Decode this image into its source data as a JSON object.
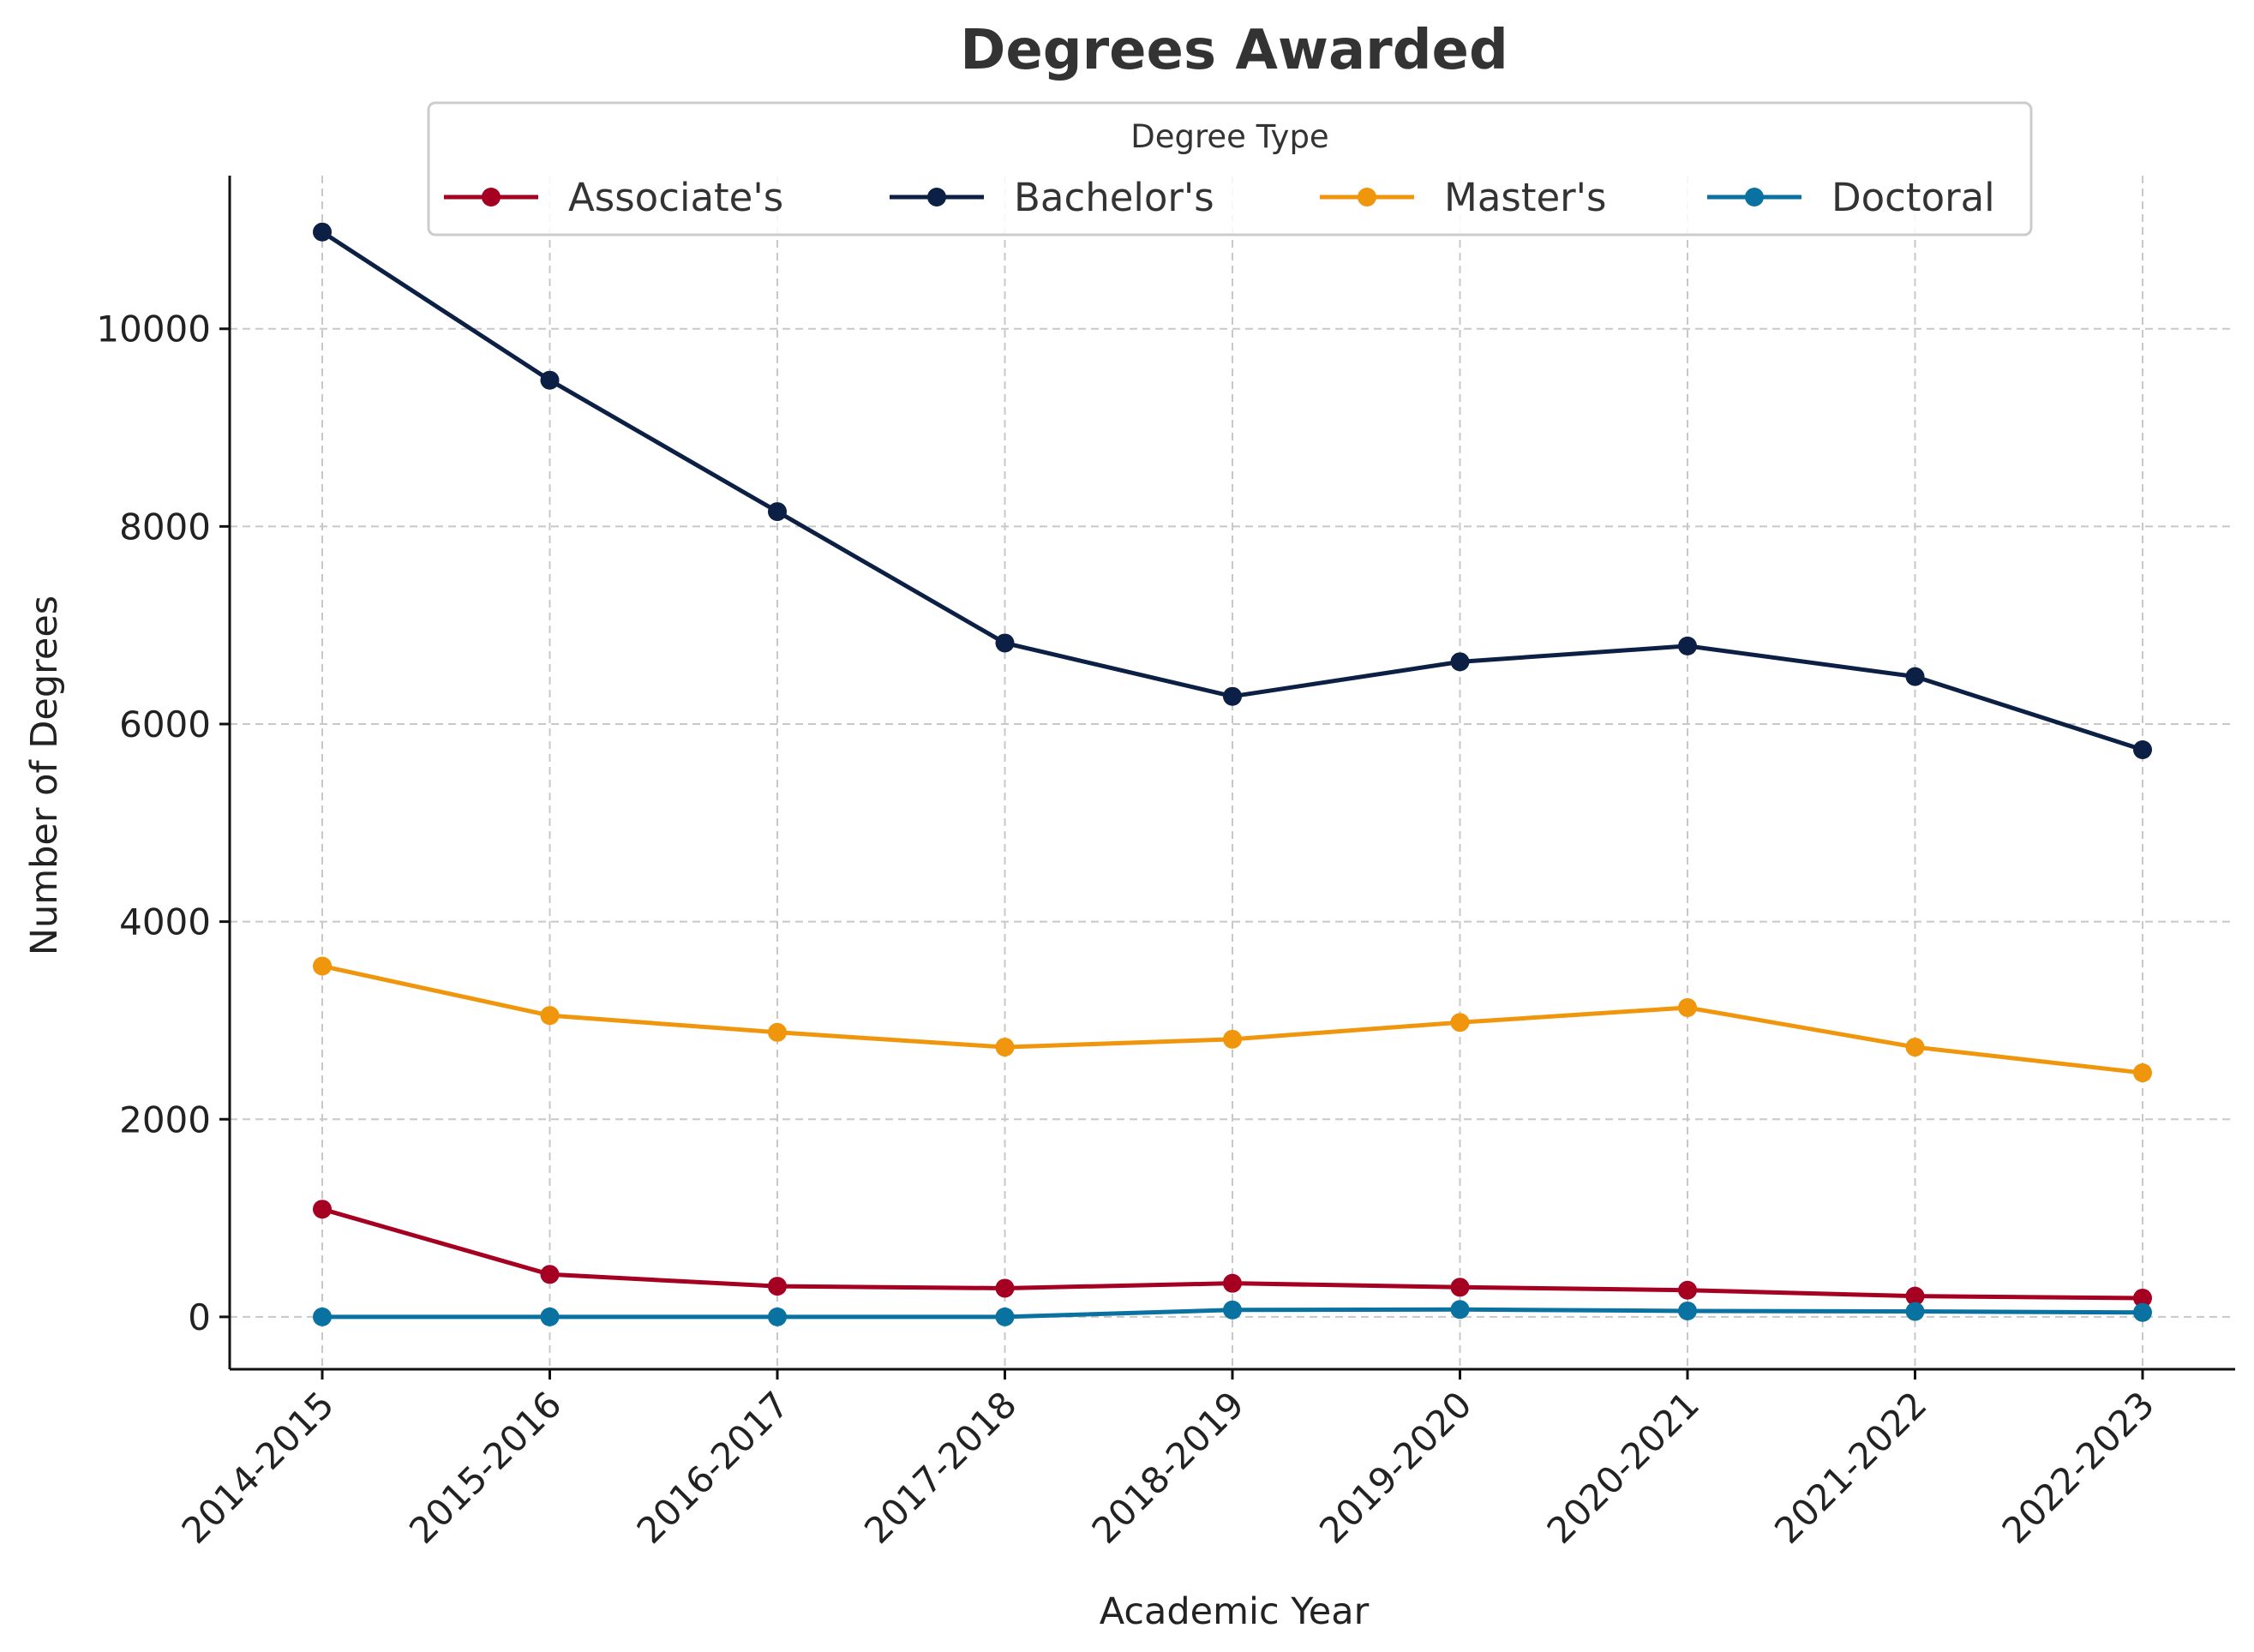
{
  "chart_data": {
    "type": "line",
    "title": "Degrees Awarded",
    "xlabel": "Academic Year",
    "ylabel": "Number of Degrees",
    "categories": [
      "2014-2015",
      "2015-2016",
      "2016-2017",
      "2017-2018",
      "2018-2019",
      "2019-2020",
      "2020-2021",
      "2021-2022",
      "2022-2023"
    ],
    "ylim": [
      -530,
      11550
    ],
    "yticks": [
      0,
      2000,
      4000,
      6000,
      8000,
      10000
    ],
    "grid": true,
    "legend": {
      "title": "Degree Type",
      "placement": "top-center"
    },
    "series": [
      {
        "name": "Associate's",
        "color": "#a50021",
        "values": [
          1090,
          430,
          310,
          290,
          340,
          300,
          270,
          210,
          190
        ]
      },
      {
        "name": "Bachelor's",
        "color": "#0c1f44",
        "values": [
          10980,
          9480,
          8150,
          6820,
          6280,
          6630,
          6790,
          6480,
          5740
        ]
      },
      {
        "name": "Master's",
        "color": "#f0960c",
        "values": [
          3550,
          3050,
          2880,
          2730,
          2810,
          2980,
          3130,
          2730,
          2470
        ]
      },
      {
        "name": "Doctoral",
        "color": "#0a72a0",
        "values": [
          0,
          0,
          0,
          0,
          70,
          75,
          60,
          55,
          45
        ]
      }
    ]
  }
}
